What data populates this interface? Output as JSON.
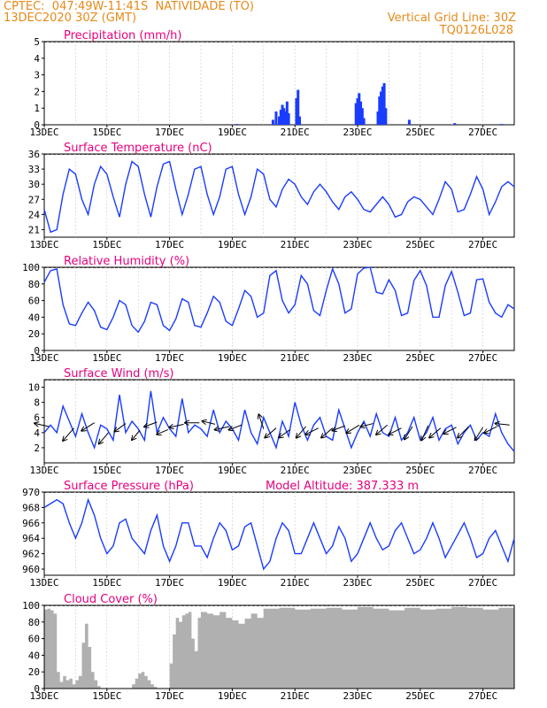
{
  "header": {
    "source": "CPTEC:",
    "coords": "047:49W-11:41S",
    "place": "NATIVIDADE (TO)",
    "init": "13DEC2020 30Z (GMT)",
    "grid_note": "Vertical Grid Line: 30Z",
    "code": "TQ0126L028"
  },
  "colors": {
    "title": "#e6007e",
    "header": "#e68a1a",
    "line": "#1a3cff",
    "cloud_fill": "#b0b0b0",
    "wind_arrow": "#000000"
  },
  "date_labels": [
    "13DEC",
    "15DEC",
    "17DEC",
    "19DEC",
    "21DEC",
    "23DEC",
    "25DEC",
    "27DEC"
  ],
  "date_label_days": [
    0,
    2,
    4,
    6,
    8,
    10,
    12,
    14
  ],
  "chart_data": [
    {
      "id": "precip",
      "type": "bar",
      "title": "Precipitation (mm/h)",
      "ylim": [
        0,
        5
      ],
      "yticks": [
        0,
        1,
        2,
        3,
        4,
        5
      ],
      "x_unit": "days since 13DEC2020 30Z",
      "bars": [
        [
          6.15,
          0.05
        ],
        [
          7.3,
          0.3
        ],
        [
          7.4,
          0.8
        ],
        [
          7.5,
          0.5
        ],
        [
          7.55,
          0.9
        ],
        [
          7.6,
          1.2
        ],
        [
          7.65,
          1.0
        ],
        [
          7.7,
          0.8
        ],
        [
          7.75,
          1.4
        ],
        [
          7.8,
          0.7
        ],
        [
          8.05,
          1.6
        ],
        [
          8.1,
          2.1
        ],
        [
          8.15,
          0.5
        ],
        [
          9.95,
          1.3
        ],
        [
          10.0,
          1.6
        ],
        [
          10.05,
          1.9
        ],
        [
          10.1,
          1.4
        ],
        [
          10.15,
          1.0
        ],
        [
          10.2,
          0.4
        ],
        [
          10.65,
          0.8
        ],
        [
          10.7,
          1.7
        ],
        [
          10.75,
          2.0
        ],
        [
          10.8,
          2.3
        ],
        [
          10.85,
          2.5
        ],
        [
          10.9,
          1.0
        ],
        [
          11.65,
          0.3
        ],
        [
          13.1,
          0.1
        ],
        [
          14.6,
          0.05
        ]
      ]
    },
    {
      "id": "temp",
      "type": "line",
      "title": "Surface Temperature (nC)",
      "ylim": [
        19.5,
        36
      ],
      "yticks": [
        21,
        24,
        27,
        30,
        33,
        36
      ],
      "series": [
        {
          "x": [
            0,
            0.2,
            0.4,
            0.6,
            0.8,
            1.0,
            1.2,
            1.4,
            1.6,
            1.8,
            2.0,
            2.2,
            2.4,
            2.6,
            2.8,
            3.0,
            3.2,
            3.4,
            3.6,
            3.8,
            4.0,
            4.2,
            4.4,
            4.6,
            4.8,
            5.0,
            5.2,
            5.4,
            5.6,
            5.8,
            6.0,
            6.2,
            6.4,
            6.6,
            6.8,
            7.0,
            7.2,
            7.4,
            7.6,
            7.8,
            8.0,
            8.2,
            8.4,
            8.6,
            8.8,
            9.0,
            9.2,
            9.4,
            9.6,
            9.8,
            10.0,
            10.2,
            10.4,
            10.6,
            10.8,
            11.0,
            11.2,
            11.4,
            11.6,
            11.8,
            12.0,
            12.2,
            12.4,
            12.6,
            12.8,
            13.0,
            13.2,
            13.4,
            13.6,
            13.8,
            14.0,
            14.2,
            14.4,
            14.6,
            14.8,
            15.0
          ],
          "y": [
            25,
            20.5,
            21,
            28,
            33,
            32,
            27,
            24,
            30,
            33.5,
            32,
            27.5,
            23.5,
            30,
            34.5,
            33.5,
            28,
            23.5,
            29.5,
            34,
            34.5,
            29,
            24,
            28,
            33,
            33.5,
            28,
            24,
            27.5,
            33,
            33.5,
            28,
            24,
            27.5,
            33,
            32,
            27,
            25.5,
            29,
            31,
            30,
            27.5,
            26,
            28.5,
            30,
            28.5,
            26.5,
            25,
            27.5,
            28.5,
            27,
            25,
            24.5,
            26,
            27.5,
            26,
            23.5,
            24,
            26.5,
            27.5,
            27,
            25.5,
            24,
            27,
            30.5,
            29,
            24.5,
            25,
            28,
            31.5,
            29,
            24,
            26.5,
            29.5,
            30.5,
            29.5
          ]
        }
      ]
    },
    {
      "id": "rh",
      "type": "line",
      "title": "Relative Humidity (%)",
      "ylim": [
        0,
        100
      ],
      "yticks": [
        0,
        20,
        40,
        60,
        80,
        100
      ],
      "series": [
        {
          "x": [
            0,
            0.2,
            0.4,
            0.6,
            0.8,
            1.0,
            1.2,
            1.4,
            1.6,
            1.8,
            2.0,
            2.2,
            2.4,
            2.6,
            2.8,
            3.0,
            3.2,
            3.4,
            3.6,
            3.8,
            4.0,
            4.2,
            4.4,
            4.6,
            4.8,
            5.0,
            5.2,
            5.4,
            5.6,
            5.8,
            6.0,
            6.2,
            6.4,
            6.6,
            6.8,
            7.0,
            7.2,
            7.4,
            7.6,
            7.8,
            8.0,
            8.2,
            8.4,
            8.6,
            8.8,
            9.0,
            9.2,
            9.4,
            9.6,
            9.8,
            10.0,
            10.2,
            10.4,
            10.6,
            10.8,
            11.0,
            11.2,
            11.4,
            11.6,
            11.8,
            12.0,
            12.2,
            12.4,
            12.6,
            12.8,
            13.0,
            13.2,
            13.4,
            13.6,
            13.8,
            14.0,
            14.2,
            14.4,
            14.6,
            14.8,
            15.0
          ],
          "y": [
            82,
            96,
            98,
            55,
            32,
            30,
            45,
            58,
            48,
            28,
            25,
            40,
            60,
            55,
            30,
            22,
            35,
            58,
            55,
            30,
            24,
            38,
            62,
            58,
            30,
            28,
            45,
            65,
            58,
            35,
            30,
            50,
            72,
            65,
            40,
            45,
            90,
            96,
            60,
            45,
            55,
            90,
            80,
            48,
            42,
            72,
            98,
            80,
            45,
            50,
            92,
            99,
            100,
            70,
            68,
            85,
            72,
            42,
            45,
            84,
            96,
            78,
            40,
            40,
            78,
            95,
            70,
            42,
            45,
            85,
            86,
            58,
            45,
            40,
            55,
            50
          ]
        }
      ]
    },
    {
      "id": "wind",
      "type": "line",
      "title": "Surface Wind (m/s)",
      "ylim": [
        0,
        11
      ],
      "yticks": [
        2,
        4,
        6,
        8,
        10
      ],
      "series": [
        {
          "x": [
            0,
            0.2,
            0.4,
            0.6,
            0.8,
            1.0,
            1.2,
            1.4,
            1.6,
            1.8,
            2.0,
            2.2,
            2.4,
            2.6,
            2.8,
            3.0,
            3.2,
            3.4,
            3.6,
            3.8,
            4.0,
            4.2,
            4.4,
            4.6,
            4.8,
            5.0,
            5.2,
            5.4,
            5.6,
            5.8,
            6.0,
            6.2,
            6.4,
            6.6,
            6.8,
            7.0,
            7.2,
            7.4,
            7.6,
            7.8,
            8.0,
            8.2,
            8.4,
            8.6,
            8.8,
            9.0,
            9.2,
            9.4,
            9.6,
            9.8,
            10.0,
            10.2,
            10.4,
            10.6,
            10.8,
            11.0,
            11.2,
            11.4,
            11.6,
            11.8,
            12.0,
            12.2,
            12.4,
            12.6,
            12.8,
            13.0,
            13.2,
            13.4,
            13.6,
            13.8,
            14.0,
            14.2,
            14.4,
            14.6,
            14.8,
            15.0
          ],
          "y": [
            4,
            5,
            4,
            7.5,
            5.5,
            3.5,
            6.5,
            4,
            2,
            5,
            4.5,
            3,
            9,
            4,
            5.5,
            4.5,
            3,
            9.5,
            4,
            6,
            4.5,
            3.5,
            8.5,
            4,
            5,
            4.5,
            3.5,
            7,
            4,
            5.5,
            4.5,
            3,
            7,
            4,
            2.5,
            6,
            4,
            2,
            5.5,
            3.5,
            8,
            5,
            3,
            5,
            6,
            3.5,
            3,
            7,
            4.5,
            2,
            4,
            5.5,
            3.5,
            6.5,
            4,
            3.5,
            6,
            3,
            4,
            6,
            3,
            4,
            6,
            3,
            4.5,
            5,
            2.5,
            4,
            5,
            3,
            4,
            3.5,
            6.5,
            4,
            2.5,
            1.5
          ]
        }
      ],
      "arrows": [
        [
          0.15,
          4.8,
          -0.9,
          0.2
        ],
        [
          0.95,
          4.6,
          -0.7,
          -0.8
        ],
        [
          1.6,
          5.3,
          -0.8,
          -0.5
        ],
        [
          2.05,
          4.0,
          -0.6,
          -0.7
        ],
        [
          2.6,
          5.2,
          -0.7,
          -0.5
        ],
        [
          3.05,
          4.3,
          -0.5,
          -0.6
        ],
        [
          3.6,
          5.4,
          -0.8,
          -0.3
        ],
        [
          3.95,
          4.4,
          -0.7,
          -0.3
        ],
        [
          4.45,
          5.1,
          -0.9,
          -0.2
        ],
        [
          4.95,
          5.3,
          -0.9,
          0.0
        ],
        [
          5.45,
          5.1,
          -0.8,
          0.2
        ],
        [
          5.9,
          4.8,
          -0.9,
          -0.2
        ],
        [
          6.3,
          5.0,
          -0.8,
          -0.3
        ],
        [
          7.0,
          4.5,
          -0.3,
          0.9
        ],
        [
          7.4,
          4.6,
          -0.7,
          -0.6
        ],
        [
          7.85,
          4.4,
          -0.7,
          -0.5
        ],
        [
          8.35,
          4.8,
          -0.6,
          -0.7
        ],
        [
          8.75,
          4.6,
          -0.8,
          -0.4
        ],
        [
          9.2,
          4.6,
          -0.7,
          -0.6
        ],
        [
          9.6,
          4.9,
          -0.8,
          -0.3
        ],
        [
          10.05,
          5.0,
          -0.8,
          -0.5
        ],
        [
          10.5,
          5.2,
          -0.8,
          -0.2
        ],
        [
          10.95,
          5.0,
          -0.7,
          -0.6
        ],
        [
          11.4,
          4.6,
          -0.8,
          -0.4
        ],
        [
          11.75,
          4.8,
          -0.5,
          -0.8
        ],
        [
          12.25,
          4.9,
          -0.4,
          -0.9
        ],
        [
          12.65,
          4.6,
          -0.7,
          -0.6
        ],
        [
          13.15,
          4.7,
          -0.8,
          -0.4
        ],
        [
          13.55,
          4.8,
          -0.7,
          -0.7
        ],
        [
          14.0,
          4.7,
          -0.5,
          -0.8
        ],
        [
          14.45,
          4.8,
          -0.8,
          -0.4
        ],
        [
          14.85,
          5.0,
          -0.9,
          0.1
        ]
      ]
    },
    {
      "id": "pressure",
      "type": "line",
      "title": "Surface Pressure (hPa)",
      "annotation": "Model Altitude: 387.333 m",
      "ylim": [
        959.2,
        970
      ],
      "yticks": [
        960,
        962,
        964,
        966,
        968,
        970
      ],
      "series": [
        {
          "x": [
            0,
            0.2,
            0.4,
            0.6,
            0.8,
            1.0,
            1.2,
            1.4,
            1.6,
            1.8,
            2.0,
            2.2,
            2.4,
            2.6,
            2.8,
            3.0,
            3.2,
            3.4,
            3.6,
            3.8,
            4.0,
            4.2,
            4.4,
            4.6,
            4.8,
            5.0,
            5.2,
            5.4,
            5.6,
            5.8,
            6.0,
            6.2,
            6.4,
            6.6,
            6.8,
            7.0,
            7.2,
            7.4,
            7.6,
            7.8,
            8.0,
            8.2,
            8.4,
            8.6,
            8.8,
            9.0,
            9.2,
            9.4,
            9.6,
            9.8,
            10.0,
            10.2,
            10.4,
            10.6,
            10.8,
            11.0,
            11.2,
            11.4,
            11.6,
            11.8,
            12.0,
            12.2,
            12.4,
            12.6,
            12.8,
            13.0,
            13.2,
            13.4,
            13.6,
            13.8,
            14.0,
            14.2,
            14.4,
            14.6,
            14.8,
            15.0
          ],
          "y": [
            968,
            968.5,
            969,
            968.5,
            966,
            964,
            966,
            969,
            967,
            964,
            962,
            963,
            966,
            966.5,
            964,
            963,
            962,
            965,
            967,
            963,
            961,
            963,
            966,
            966,
            963,
            963,
            961.5,
            964,
            966,
            965,
            962.5,
            963,
            965.5,
            966,
            963,
            960,
            961,
            964,
            966,
            965,
            962,
            962,
            964,
            966,
            964,
            962,
            963,
            965.5,
            964,
            961,
            962,
            964,
            966,
            964,
            962.5,
            963,
            965,
            966,
            964,
            962,
            962.5,
            964,
            966,
            964,
            961.5,
            963,
            964.5,
            966,
            964,
            961.5,
            962,
            964,
            965,
            963,
            961,
            964
          ]
        }
      ]
    },
    {
      "id": "cloud",
      "type": "area",
      "title": "Cloud Cover (%)",
      "ylim": [
        0,
        100
      ],
      "yticks": [
        0,
        20,
        40,
        60,
        80,
        100
      ],
      "series": [
        {
          "x": [
            0,
            0.1,
            0.2,
            0.3,
            0.4,
            0.5,
            0.6,
            0.7,
            0.8,
            0.9,
            1.0,
            1.1,
            1.2,
            1.3,
            1.4,
            1.5,
            1.6,
            1.7,
            1.8,
            1.9,
            2.0,
            2.1,
            2.2,
            2.3,
            2.4,
            2.5,
            2.6,
            2.7,
            2.8,
            2.9,
            3.0,
            3.1,
            3.2,
            3.3,
            3.4,
            3.5,
            3.6,
            3.7,
            3.8,
            3.9,
            4.0,
            4.1,
            4.2,
            4.3,
            4.4,
            4.5,
            4.6,
            4.7,
            4.8,
            4.9,
            5.0,
            5.2,
            5.4,
            5.6,
            5.8,
            6.0,
            6.2,
            6.4,
            6.6,
            6.8,
            7.0,
            7.5,
            8.0,
            8.5,
            9.0,
            9.5,
            10.0,
            10.5,
            11.0,
            11.5,
            12.0,
            12.5,
            13.0,
            13.5,
            14.0,
            14.5,
            15.0
          ],
          "y": [
            95,
            96,
            94,
            90,
            20,
            8,
            15,
            10,
            12,
            5,
            10,
            15,
            55,
            78,
            50,
            20,
            10,
            3,
            0,
            0,
            0,
            0,
            0,
            0,
            0,
            0,
            0,
            0,
            5,
            12,
            18,
            20,
            15,
            10,
            5,
            2,
            0,
            0,
            0,
            0,
            30,
            65,
            85,
            80,
            88,
            90,
            92,
            60,
            45,
            85,
            92,
            90,
            88,
            92,
            85,
            82,
            78,
            84,
            90,
            85,
            96,
            97,
            95,
            96,
            97,
            95,
            98,
            96,
            94,
            97,
            95,
            96,
            98,
            97,
            95,
            97,
            96
          ]
        }
      ]
    }
  ]
}
